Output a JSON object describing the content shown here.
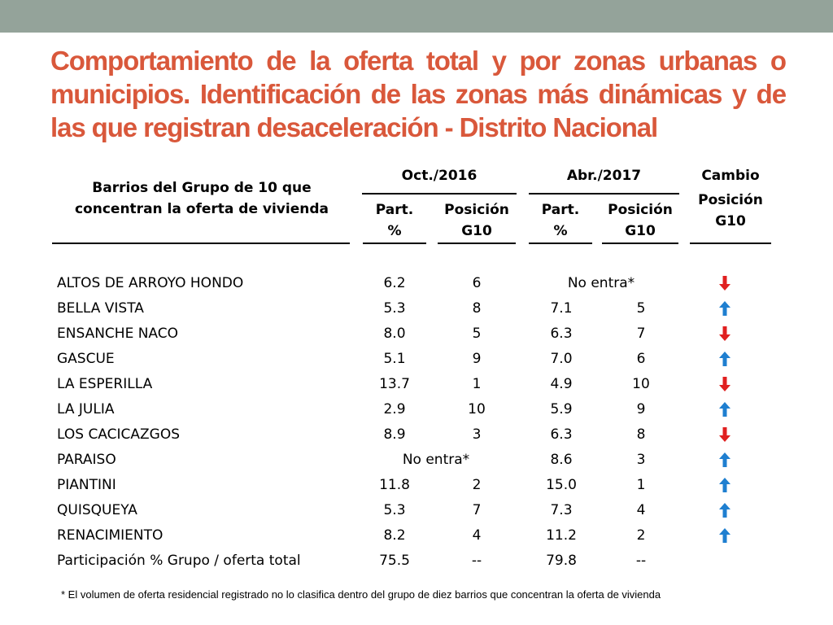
{
  "slide": {
    "title": "Comportamiento de la oferta total y por zonas urbanas o municipios. Identificación de las zonas más dinámicas y de las que registran desaceleración  - Distrito Nacional"
  },
  "table": {
    "header": {
      "barrios_line1": "Barrios del Grupo de 10 que",
      "barrios_line2": "concentran la oferta de vivienda",
      "period1": "Oct./2016",
      "period2": "Abr./2017",
      "part_line1": "Part.",
      "part_line2": "%",
      "pos_line1": "Posición",
      "pos_line2": "G10",
      "cambio_line1": "Cambio",
      "cambio_line2": "Posición",
      "cambio_line3": "G10"
    },
    "rows": [
      {
        "name": "ALTOS DE ARROYO HONDO",
        "part2016": "6.2",
        "pos2016": "6",
        "merged2017": "No entra*",
        "change": "down",
        "color": "#e02020"
      },
      {
        "name": "BELLA VISTA",
        "part2016": "5.3",
        "pos2016": "8",
        "part2017": "7.1",
        "pos2017": "5",
        "change": "up",
        "color": "#1f7fd0"
      },
      {
        "name": "ENSANCHE NACO",
        "part2016": "8.0",
        "pos2016": "5",
        "part2017": "6.3",
        "pos2017": "7",
        "change": "down",
        "color": "#e02020"
      },
      {
        "name": "GASCUE",
        "part2016": "5.1",
        "pos2016": "9",
        "part2017": "7.0",
        "pos2017": "6",
        "change": "up",
        "color": "#1f7fd0"
      },
      {
        "name": "LA ESPERILLA",
        "part2016": "13.7",
        "pos2016": "1",
        "part2017": "4.9",
        "pos2017": "10",
        "change": "down",
        "color": "#e02020"
      },
      {
        "name": "LA JULIA",
        "part2016": "2.9",
        "pos2016": "10",
        "part2017": "5.9",
        "pos2017": "9",
        "change": "up",
        "color": "#1f7fd0"
      },
      {
        "name": "LOS CACICAZGOS",
        "part2016": "8.9",
        "pos2016": "3",
        "part2017": "6.3",
        "pos2017": "8",
        "change": "down",
        "color": "#e02020"
      },
      {
        "name": "PARAISO",
        "merged2016": "No entra*",
        "part2017": "8.6",
        "pos2017": "3",
        "change": "up",
        "color": "#1f7fd0"
      },
      {
        "name": "PIANTINI",
        "part2016": "11.8",
        "pos2016": "2",
        "part2017": "15.0",
        "pos2017": "1",
        "change": "up",
        "color": "#1f7fd0"
      },
      {
        "name": "QUISQUEYA",
        "part2016": "5.3",
        "pos2016": "7",
        "part2017": "7.3",
        "pos2017": "4",
        "change": "up",
        "color": "#1f7fd0"
      },
      {
        "name": "RENACIMIENTO",
        "part2016": "8.2",
        "pos2016": "4",
        "part2017": "11.2",
        "pos2017": "2",
        "change": "up",
        "color": "#1f7fd0"
      },
      {
        "name": "Participación % Grupo / oferta total",
        "part2016": "75.5",
        "pos2016": "--",
        "part2017": "79.8",
        "pos2017": "--"
      }
    ]
  },
  "footnote": "* El volumen de oferta residencial registrado no lo clasifica dentro del grupo de diez barrios que concentran la oferta de vivienda"
}
